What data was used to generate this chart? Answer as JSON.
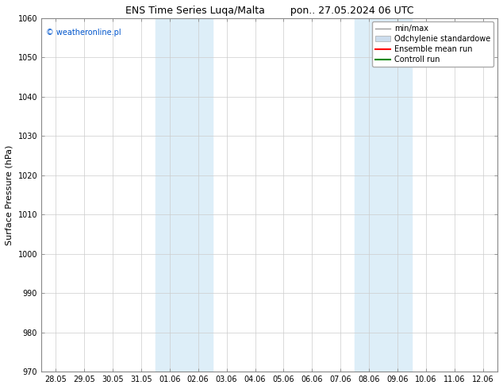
{
  "title_left": "ENS Time Series Luqa/Malta",
  "title_right": "pon.. 27.05.2024 06 UTC",
  "ylabel": "Surface Pressure (hPa)",
  "ylim": [
    970,
    1060
  ],
  "yticks": [
    970,
    980,
    990,
    1000,
    1010,
    1020,
    1030,
    1040,
    1050,
    1060
  ],
  "xtick_labels": [
    "28.05",
    "29.05",
    "30.05",
    "31.05",
    "01.06",
    "02.06",
    "03.06",
    "04.06",
    "05.06",
    "06.06",
    "07.06",
    "08.06",
    "09.06",
    "10.06",
    "11.06",
    "12.06"
  ],
  "watermark": "© weatheronline.pl",
  "watermark_color": "#0055cc",
  "background_color": "#ffffff",
  "plot_bg_color": "#ffffff",
  "shaded_regions": [
    {
      "xstart": 4,
      "xend": 6,
      "color": "#ddeef8"
    },
    {
      "xstart": 11,
      "xend": 13,
      "color": "#ddeef8"
    }
  ],
  "legend_entries": [
    {
      "label": "min/max",
      "color": "#999999",
      "style": "line",
      "linewidth": 1.0
    },
    {
      "label": "Odchylenie standardowe",
      "color": "#ccdded",
      "style": "rect"
    },
    {
      "label": "Ensemble mean run",
      "color": "#ff0000",
      "style": "line",
      "linewidth": 1.5
    },
    {
      "label": "Controll run",
      "color": "#008800",
      "style": "line",
      "linewidth": 1.5
    }
  ],
  "title_fontsize": 9,
  "tick_fontsize": 7,
  "label_fontsize": 8,
  "legend_fontsize": 7,
  "watermark_fontsize": 7
}
